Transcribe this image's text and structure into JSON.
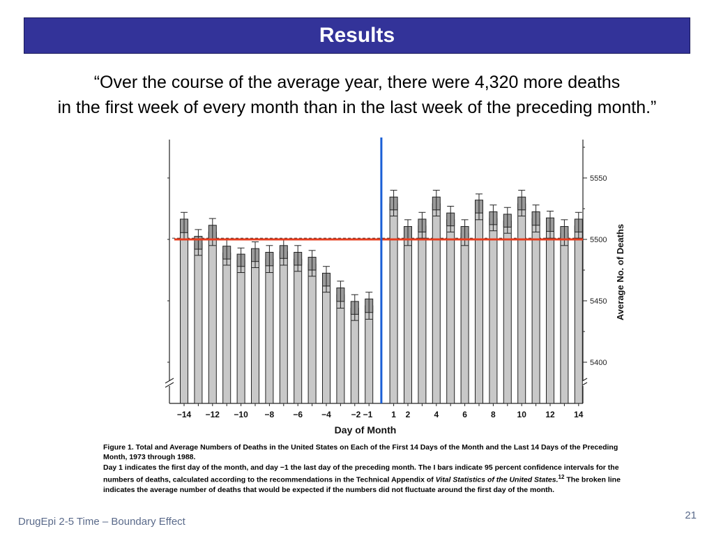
{
  "slide": {
    "title": "Results",
    "quote_line1": "“Over the course of the average year, there were 4,320 more deaths",
    "quote_line2": "in the first week of every month than in the last week of the preceding month.”",
    "footer": "DrugEpi 2-5  Time – Boundary Effect",
    "page_number": "21"
  },
  "colors": {
    "title_bar": "#333399",
    "title_text": "#ffffff",
    "bar_fill": "#c8c8c8",
    "overlay_hline": "#e63c1e",
    "overlay_vline": "#1a5fd6",
    "footer_text": "#5a6a8a"
  },
  "chart_data": {
    "type": "bar",
    "xlabel": "Day of Month",
    "ylabel": "Average No. of Deaths",
    "ylim": [
      5380,
      5580
    ],
    "yticks": [
      5400,
      5450,
      5500,
      5550
    ],
    "y_axis_position": "right",
    "categories": [
      "-14",
      "-13",
      "-12",
      "-11",
      "-10",
      "-9",
      "-8",
      "-7",
      "-6",
      "-5",
      "-4",
      "-3",
      "-2",
      "-1",
      "1",
      "2",
      "3",
      "4",
      "5",
      "6",
      "7",
      "8",
      "9",
      "10",
      "11",
      "12",
      "13",
      "14"
    ],
    "xtick_labels": [
      "−14",
      "−12",
      "−10",
      "−8",
      "−6",
      "−4",
      "−2 −1",
      "1",
      "2",
      "4",
      "6",
      "8",
      "10",
      "12",
      "14"
    ],
    "values": [
      5511,
      5497,
      5506,
      5489,
      5483,
      5487,
      5484,
      5490,
      5484,
      5480,
      5467,
      5455,
      5444,
      5446,
      5529,
      5505,
      5511,
      5529,
      5516,
      5505,
      5527,
      5517,
      5515,
      5529,
      5517,
      5512,
      5505,
      5511
    ],
    "ci_low": [
      5500,
      5487,
      5495,
      5479,
      5473,
      5477,
      5473,
      5479,
      5474,
      5470,
      5457,
      5444,
      5434,
      5435,
      5519,
      5495,
      5501,
      5519,
      5506,
      5495,
      5516,
      5507,
      5505,
      5519,
      5506,
      5501,
      5495,
      5501
    ],
    "ci_high": [
      5522,
      5508,
      5517,
      5500,
      5493,
      5498,
      5495,
      5500,
      5495,
      5491,
      5478,
      5466,
      5455,
      5457,
      5540,
      5516,
      5522,
      5540,
      5527,
      5516,
      5537,
      5528,
      5526,
      5540,
      5528,
      5523,
      5516,
      5522
    ],
    "expected_average_broken_line": 5501,
    "overlay_horizontal_line_value": 5500,
    "overlay_vertical_line": "between -1 and 1",
    "caption": {
      "figure_label": "Figure 1.",
      "figure_title": " Total and Average Numbers of Deaths in the United States on Each of the First 14 Days of the Month and the Last 14 Days of the Preceding Month, 1973 through 1988.",
      "note_part1": "Day 1 indicates the first day of the month, and day −1 the last day of the preceding month. The I bars indicate 95 percent confidence intervals for the numbers of deaths, calculated according to the recommendations in the Technical Appendix of ",
      "note_italic": "Vital Statistics of the United States.",
      "note_ref": "12",
      "note_part2": " The broken line indicates the average number of deaths that would be expected if the numbers did not fluctuate around the first day of the month."
    }
  }
}
